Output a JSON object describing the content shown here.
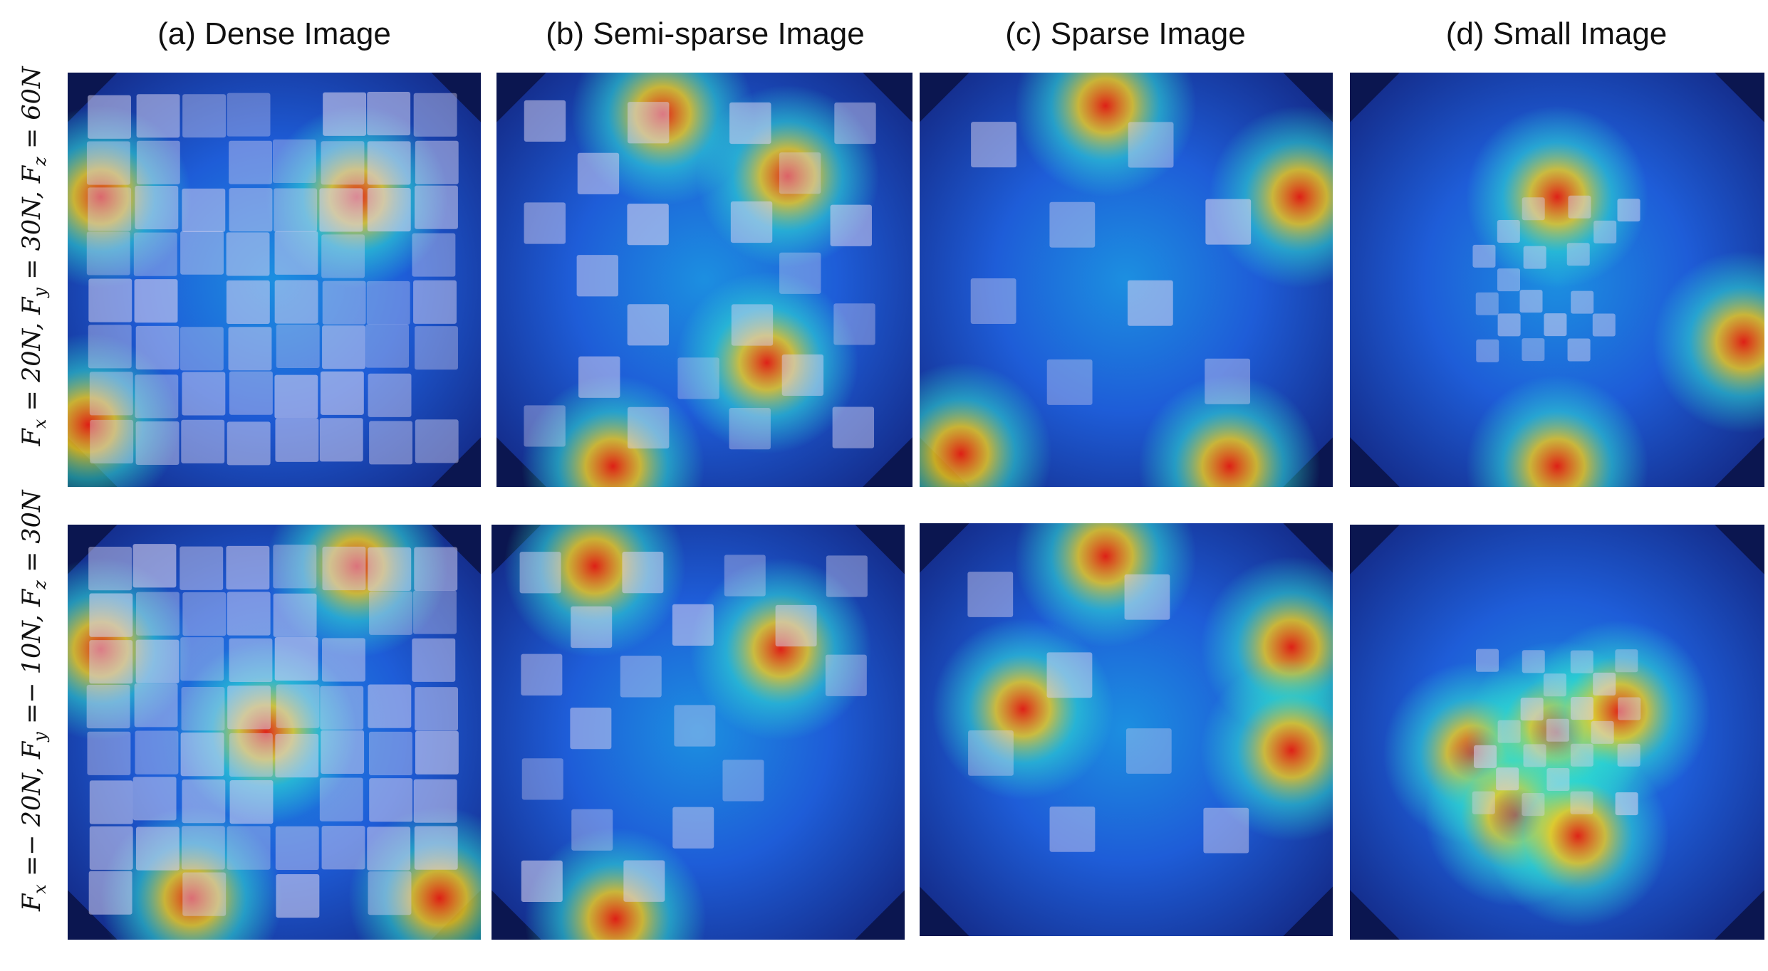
{
  "columns": [
    {
      "label": "(a) Dense Image"
    },
    {
      "label": "(b) Semi-sparse Image"
    },
    {
      "label": "(c) Sparse Image"
    },
    {
      "label": "(d) Small Image"
    }
  ],
  "rows": [
    {
      "label": {
        "fx": "F",
        "fx_sub": "x",
        "fx_val": " = 20N, ",
        "fy": "F",
        "fy_sub": "y",
        "fy_val": " = 30N, ",
        "fz": "F",
        "fz_sub": "z",
        "fz_val": " = 60N"
      }
    },
    {
      "label": {
        "fx": "F",
        "fx_sub": "x",
        "fx_val": " =− 20N, ",
        "fy": "F",
        "fy_sub": "y",
        "fy_val": " =− 10N, ",
        "fz": "F",
        "fz_sub": "z",
        "fz_val": " = 30N"
      }
    }
  ],
  "colors": {
    "background": "#ffffff",
    "heat_low": "#1a2fb5",
    "heat_mid": "#2ee0d0",
    "heat_high": "#e81e0e",
    "patch": "#d8d2f0"
  },
  "panel_content": "attention heatmaps overlaid on checkerboard marker images (photographic, not text)"
}
